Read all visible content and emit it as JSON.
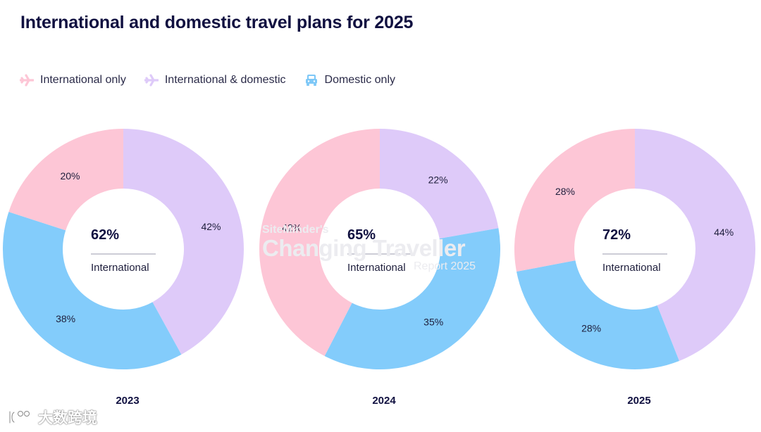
{
  "title": "International and domestic travel plans for 2025",
  "legend": [
    {
      "label": "International only",
      "icon": "plane-icon",
      "color": "#fdc6d6"
    },
    {
      "label": "International & domestic",
      "icon": "plane-icon",
      "color": "#decaf9"
    },
    {
      "label": "Domestic only",
      "icon": "car-icon",
      "color": "#7ec8f7"
    }
  ],
  "chart_data": [
    {
      "type": "donut",
      "year": "2023",
      "center_value": "62%",
      "center_label": "International",
      "series": [
        {
          "name": "International & domestic",
          "value": 42,
          "label": "42%",
          "color": "#decaf9"
        },
        {
          "name": "Domestic only",
          "value": 38,
          "label": "38%",
          "color": "#83ccfb"
        },
        {
          "name": "International only",
          "value": 20,
          "label": "20%",
          "color": "#fdc6d6"
        }
      ]
    },
    {
      "type": "donut",
      "year": "2024",
      "center_value": "65%",
      "center_label": "International",
      "series": [
        {
          "name": "International & domestic",
          "value": 22,
          "label": "22%",
          "color": "#decaf9"
        },
        {
          "name": "Domestic only",
          "value": 35,
          "label": "35%",
          "color": "#83ccfb"
        },
        {
          "name": "International only",
          "value": 42,
          "label": "42%",
          "color": "#fdc6d6"
        }
      ]
    },
    {
      "type": "donut",
      "year": "2025",
      "center_value": "72%",
      "center_label": "International",
      "series": [
        {
          "name": "International & domestic",
          "value": 44,
          "label": "44%",
          "color": "#decaf9"
        },
        {
          "name": "Domestic only",
          "value": 28,
          "label": "28%",
          "color": "#83ccfb"
        },
        {
          "name": "International only",
          "value": 28,
          "label": "28%",
          "color": "#fdc6d6"
        }
      ]
    }
  ],
  "watermark": {
    "line1": "SiteMinder's",
    "line2": "Changing Traveller",
    "line3": "Report 2025"
  },
  "corner_logo": "大数跨境"
}
